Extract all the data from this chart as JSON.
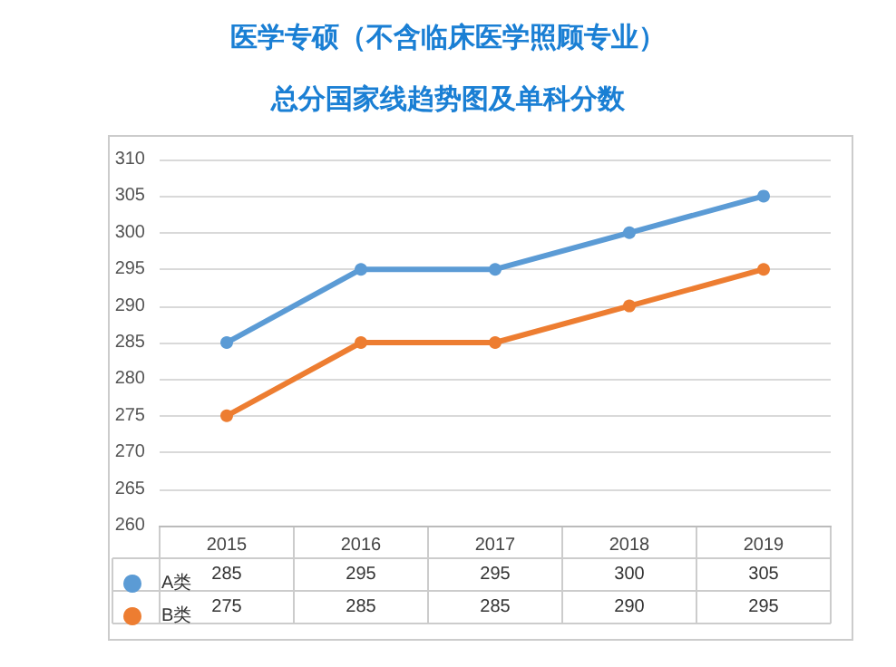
{
  "chart_data": {
    "type": "line",
    "title": "医学专硕（不含临床医学照顾专业）",
    "subtitle": "总分国家线趋势图及单科分数",
    "categories": [
      "2015",
      "2016",
      "2017",
      "2018",
      "2019"
    ],
    "series": [
      {
        "name": "A类",
        "color": "#5b9bd5",
        "values": [
          285,
          295,
          295,
          300,
          305
        ]
      },
      {
        "name": "B类",
        "color": "#ed7d31",
        "values": [
          275,
          285,
          285,
          290,
          295
        ]
      }
    ],
    "ylim": [
      260,
      310
    ],
    "yticks": [
      260,
      265,
      270,
      275,
      280,
      285,
      290,
      295,
      300,
      305,
      310
    ],
    "grid": "y",
    "legend": "bottom",
    "marker": "circle",
    "line_style": "solid",
    "data_labels": true
  }
}
